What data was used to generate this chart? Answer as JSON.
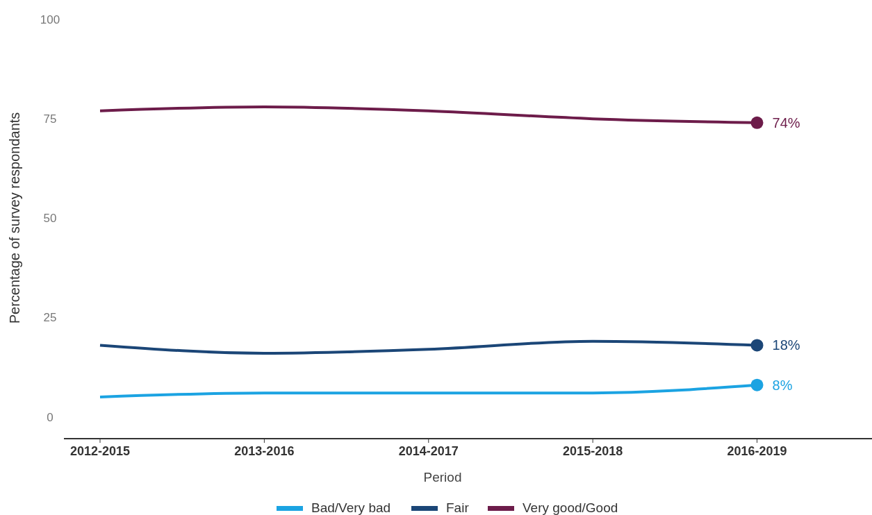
{
  "chart_data": {
    "type": "line",
    "xlabel": "Period",
    "ylabel": "Percentage of survey respondants",
    "categories": [
      "2012-2015",
      "2013-2016",
      "2014-2017",
      "2015-2018",
      "2016-2019"
    ],
    "series": [
      {
        "name": "Bad/Very bad",
        "color": "#1ba3e2",
        "values": [
          5,
          6,
          6,
          6,
          8
        ],
        "value_labels": [
          null,
          null,
          null,
          null,
          "8%"
        ]
      },
      {
        "name": "Fair",
        "color": "#1b4677",
        "values": [
          18,
          16,
          17,
          19,
          18
        ],
        "value_labels": [
          null,
          null,
          null,
          null,
          "18%"
        ]
      },
      {
        "name": "Very good/Good",
        "color": "#6d1c4a",
        "values": [
          77,
          78,
          77,
          75,
          74
        ],
        "value_labels": [
          null,
          null,
          null,
          null,
          "74%"
        ]
      }
    ],
    "ylim": [
      -5.5,
      100
    ],
    "yticks": [
      0,
      25,
      50,
      75,
      100
    ],
    "grid": false,
    "legend": "bottom",
    "line_style": "solid"
  }
}
